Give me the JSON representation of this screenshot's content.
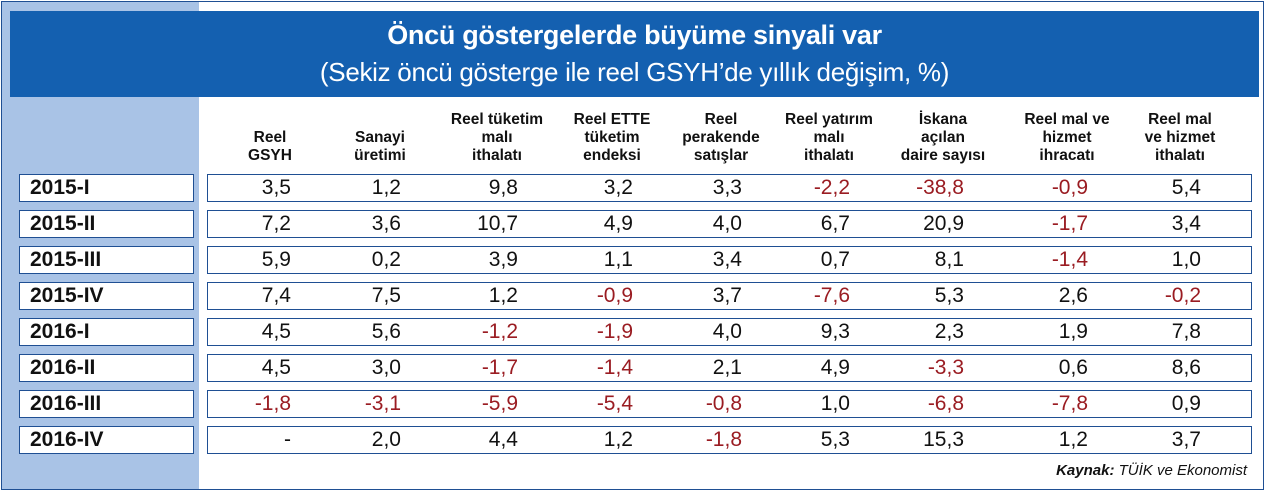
{
  "title": "Öncü göstergelerde büyüme sinyali var",
  "subtitle": "(Sekiz öncü gösterge ile reel GSYH’de yıllık değişim, %)",
  "source_label": "Kaynak:",
  "source_text": " TÜİK ve Ekonomist",
  "colors": {
    "banner": "#1460b0",
    "side": "#a9c3e6",
    "border": "#1f4f93",
    "negative": "#9a1c22"
  },
  "chart_data": {
    "type": "table",
    "columns": [
      [
        "Reel",
        "GSYH"
      ],
      [
        "Sanayi",
        "üretimi"
      ],
      [
        "Reel tüketim",
        "malı",
        "ithalatı"
      ],
      [
        "Reel ETTE",
        "tüketim",
        "endeksi"
      ],
      [
        "Reel",
        "perakende",
        "satışlar"
      ],
      [
        "Reel yatırım",
        "malı",
        "ithalatı"
      ],
      [
        "İskana",
        "açılan",
        "daire sayısı"
      ],
      [
        "Reel mal ve",
        "hizmet",
        "ihracatı"
      ],
      [
        "Reel mal",
        "ve hizmet",
        "ithalatı"
      ]
    ],
    "rows": [
      {
        "label": "2015-I",
        "values": [
          "3,5",
          "1,2",
          "9,8",
          "3,2",
          "3,3",
          "-2,2",
          "-38,8",
          "-0,9",
          "5,4"
        ]
      },
      {
        "label": "2015-II",
        "values": [
          "7,2",
          "3,6",
          "10,7",
          "4,9",
          "4,0",
          "6,7",
          "20,9",
          "-1,7",
          "3,4"
        ]
      },
      {
        "label": "2015-III",
        "values": [
          "5,9",
          "0,2",
          "3,9",
          "1,1",
          "3,4",
          "0,7",
          "8,1",
          "-1,4",
          "1,0"
        ]
      },
      {
        "label": "2015-IV",
        "values": [
          "7,4",
          "7,5",
          "1,2",
          "-0,9",
          "3,7",
          "-7,6",
          "5,3",
          "2,6",
          "-0,2"
        ]
      },
      {
        "label": "2016-I",
        "values": [
          "4,5",
          "5,6",
          "-1,2",
          "-1,9",
          "4,0",
          "9,3",
          "2,3",
          "1,9",
          "7,8"
        ]
      },
      {
        "label": "2016-II",
        "values": [
          "4,5",
          "3,0",
          "-1,7",
          "-1,4",
          "2,1",
          "4,9",
          "-3,3",
          "0,6",
          "8,6"
        ]
      },
      {
        "label": "2016-III",
        "values": [
          "-1,8",
          "-3,1",
          "-5,9",
          "-5,4",
          "-0,8",
          "1,0",
          "-6,8",
          "-7,8",
          "0,9"
        ]
      },
      {
        "label": "2016-IV",
        "values": [
          "-",
          "2,0",
          "4,4",
          "1,2",
          "-1,8",
          "5,3",
          "15,3",
          "1,2",
          "3,7"
        ]
      }
    ]
  }
}
